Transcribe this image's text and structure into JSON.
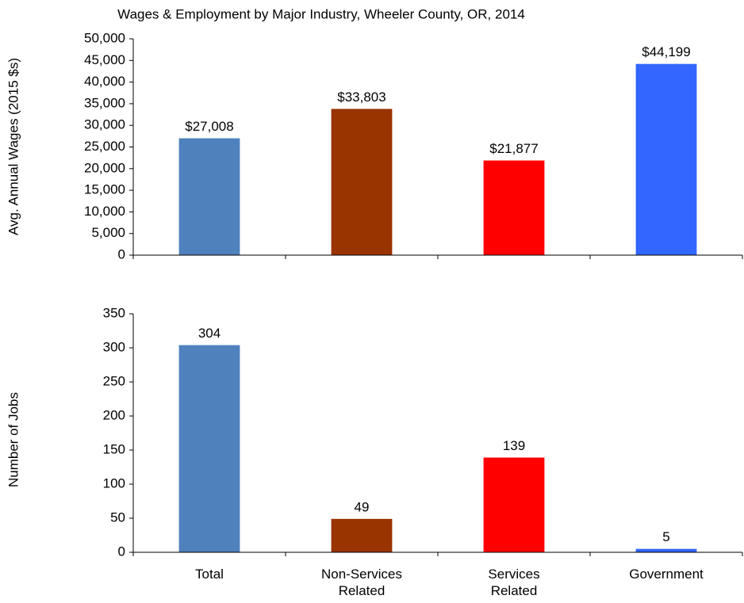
{
  "chart_data": [
    {
      "type": "bar",
      "title": "Wages & Employment by Major Industry, Wheeler County, OR, 2014",
      "ylabel": "Avg. Annual Wages (2015 $s)",
      "values": [
        27008,
        33803,
        21877,
        44199
      ],
      "value_labels": [
        "$27,008",
        "$33,803",
        "$21,877",
        "$44,199"
      ],
      "colors": [
        "#4f81bd",
        "#993300",
        "#ff0000",
        "#3366ff"
      ],
      "ylim": [
        0,
        50000
      ],
      "yticks": [
        0,
        {
          "value": 5000,
          "label": "5,000"
        },
        {
          "value": 10000,
          "label": "10,000"
        },
        {
          "value": 15000,
          "label": "15,000"
        },
        {
          "value": 20000,
          "label": "20,000"
        },
        {
          "value": 25000,
          "label": "25,000"
        },
        {
          "value": 30000,
          "label": "30,000"
        },
        {
          "value": 35000,
          "label": "35,000"
        },
        {
          "value": 40000,
          "label": "40,000"
        },
        {
          "value": 45000,
          "label": "45,000"
        },
        {
          "value": 50000,
          "label": "50,000"
        }
      ]
    },
    {
      "type": "bar",
      "ylabel": "Number of Jobs",
      "categories": [
        "Total",
        "Non-Services Related",
        "Services Related",
        "Government"
      ],
      "values": [
        304,
        49,
        139,
        5
      ],
      "colors": [
        "#4f81bd",
        "#993300",
        "#ff0000",
        "#3366ff"
      ],
      "ylim": [
        0,
        350
      ],
      "yticks": [
        0,
        50,
        100,
        150,
        200,
        250,
        300,
        350
      ]
    }
  ]
}
